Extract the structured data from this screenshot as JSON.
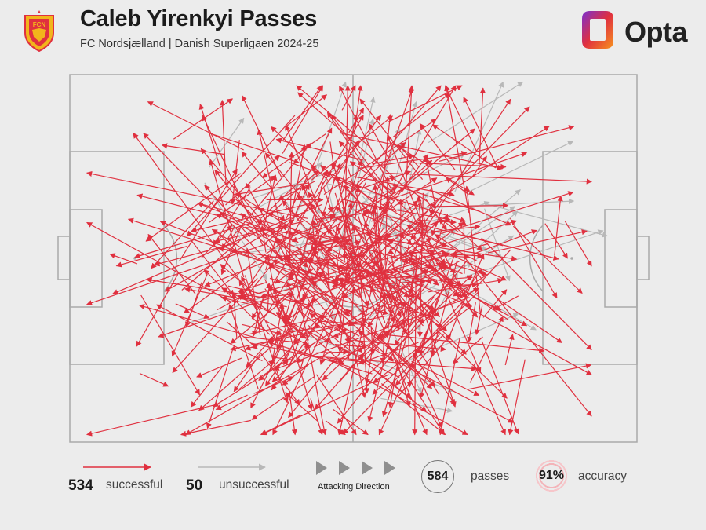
{
  "header": {
    "title": "Caleb Yirenkyi Passes",
    "subtitle": "FC Nordsjælland | Danish Superligaen 2024-25",
    "crest_text": "FCN",
    "brand": "Opta"
  },
  "colors": {
    "successful": "#e0303f",
    "unsuccessful": "#b8b8b8",
    "pitch_lines": "#a9a9a9",
    "background": "#ececec"
  },
  "legend": {
    "successful_count": "534",
    "successful_label": "successful",
    "unsuccessful_count": "50",
    "unsuccessful_label": "unsuccessful",
    "direction_label": "Attacking Direction",
    "total_passes": "584",
    "passes_label": "passes",
    "accuracy": "91%",
    "accuracy_label": "accuracy"
  },
  "passes": {
    "successful": 534,
    "unsuccessful": 50,
    "units": "pitch coordinates 0-100 (x: toward attacking goal, y: top to bottom)"
  }
}
